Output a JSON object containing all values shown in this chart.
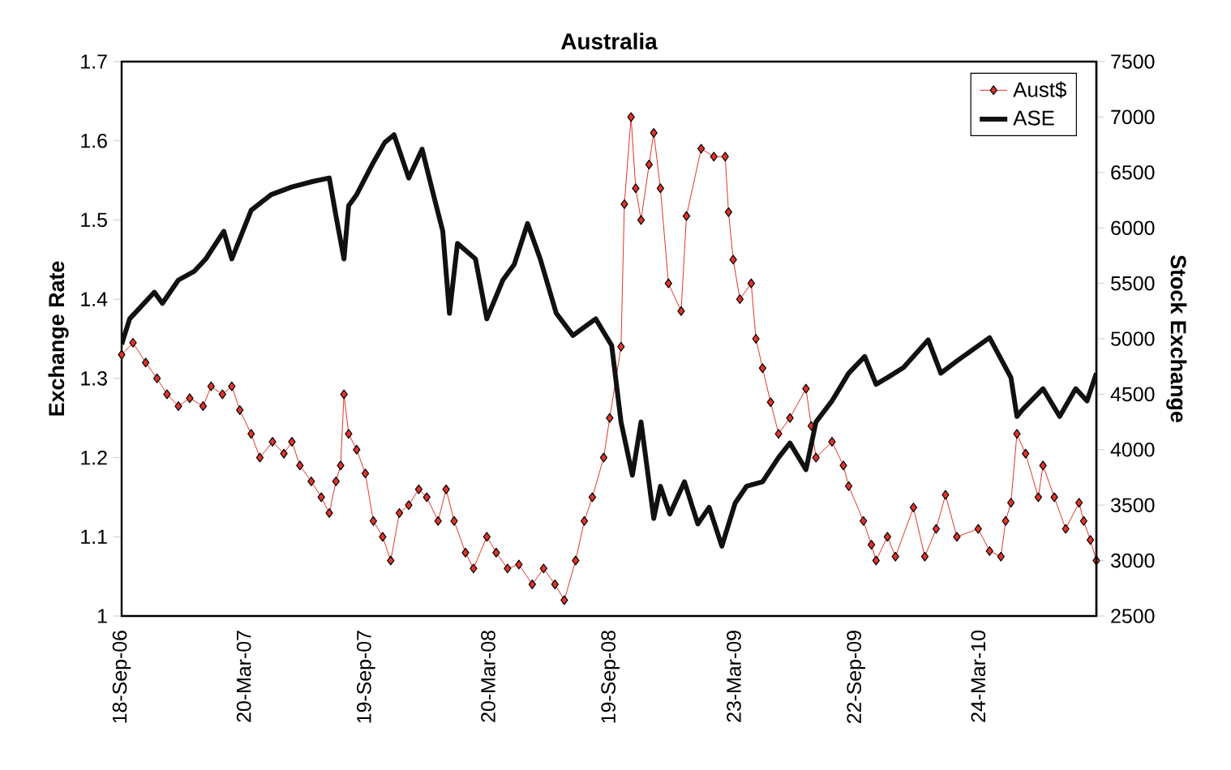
{
  "chart_data": {
    "type": "line",
    "title": "Australia",
    "ylabel": "Exchange Rate",
    "y2label": "Stock Exchange",
    "xlim": [
      "2006-09-18",
      "2010-09-17"
    ],
    "xticks": [
      {
        "value": "2006-09-18",
        "label": "18-Sep-06"
      },
      {
        "value": "2007-03-20",
        "label": "20-Mar-07"
      },
      {
        "value": "2007-09-19",
        "label": "19-Sep-07"
      },
      {
        "value": "2008-03-20",
        "label": "20-Mar-08"
      },
      {
        "value": "2008-09-19",
        "label": "19-Sep-08"
      },
      {
        "value": "2009-03-23",
        "label": "23-Mar-09"
      },
      {
        "value": "2009-09-22",
        "label": "22-Sep-09"
      },
      {
        "value": "2010-03-24",
        "label": "24-Mar-10"
      }
    ],
    "ylim": [
      1,
      1.7
    ],
    "yticks": [
      1,
      1.1,
      1.2,
      1.3,
      1.4,
      1.5,
      1.6,
      1.7
    ],
    "y2lim": [
      2500,
      7500
    ],
    "y2ticks": [
      2500,
      3000,
      3500,
      4000,
      4500,
      5000,
      5500,
      6000,
      6500,
      7000,
      7500
    ],
    "legend": "top right",
    "series": [
      {
        "name": "Aust$",
        "color": "#e2342a",
        "marker": "diamond",
        "line_style": "solid",
        "x": [
          "2006-09-18",
          "2006-10-05",
          "2006-10-24",
          "2006-11-10",
          "2006-11-25",
          "2006-12-12",
          "2006-12-29",
          "2007-01-18",
          "2007-01-30",
          "2007-02-16",
          "2007-03-02",
          "2007-03-14",
          "2007-03-31",
          "2007-04-13",
          "2007-05-02",
          "2007-05-19",
          "2007-05-31",
          "2007-06-12",
          "2007-06-29",
          "2007-07-14",
          "2007-07-26",
          "2007-08-05",
          "2007-08-12",
          "2007-08-17",
          "2007-08-24",
          "2007-09-05",
          "2007-09-18",
          "2007-09-30",
          "2007-10-14",
          "2007-10-26",
          "2007-11-08",
          "2007-11-22",
          "2007-12-07",
          "2007-12-19",
          "2008-01-05",
          "2008-01-17",
          "2008-01-29",
          "2008-02-15",
          "2008-02-27",
          "2008-03-18",
          "2008-04-01",
          "2008-04-18",
          "2008-05-05",
          "2008-05-25",
          "2008-06-11",
          "2008-06-28",
          "2008-07-12",
          "2008-07-29",
          "2008-08-11",
          "2008-08-23",
          "2008-09-09",
          "2008-09-18",
          "2008-10-05",
          "2008-10-10",
          "2008-10-20",
          "2008-10-27",
          "2008-11-04",
          "2008-11-16",
          "2008-11-23",
          "2008-12-03",
          "2008-12-15",
          "2009-01-03",
          "2009-01-11",
          "2009-02-02",
          "2009-02-21",
          "2009-03-10",
          "2009-03-15",
          "2009-03-22",
          "2009-04-01",
          "2009-04-18",
          "2009-04-25",
          "2009-05-05",
          "2009-05-17",
          "2009-05-29",
          "2009-06-15",
          "2009-07-09",
          "2009-07-17",
          "2009-07-24",
          "2009-08-17",
          "2009-09-03",
          "2009-09-11",
          "2009-10-03",
          "2009-10-15",
          "2009-10-22",
          "2009-11-08",
          "2009-11-20",
          "2009-12-17",
          "2010-01-03",
          "2010-01-20",
          "2010-02-03",
          "2010-02-20",
          "2010-03-24",
          "2010-04-10",
          "2010-04-27",
          "2010-05-04",
          "2010-05-12",
          "2010-05-21",
          "2010-06-03",
          "2010-06-22",
          "2010-06-29",
          "2010-07-16",
          "2010-08-02",
          "2010-08-22",
          "2010-08-29",
          "2010-09-08",
          "2010-09-17"
        ],
        "values": [
          1.33,
          1.345,
          1.32,
          1.3,
          1.28,
          1.265,
          1.275,
          1.265,
          1.29,
          1.28,
          1.29,
          1.26,
          1.23,
          1.2,
          1.22,
          1.205,
          1.22,
          1.19,
          1.17,
          1.15,
          1.13,
          1.17,
          1.19,
          1.28,
          1.23,
          1.21,
          1.18,
          1.12,
          1.1,
          1.07,
          1.13,
          1.14,
          1.16,
          1.15,
          1.12,
          1.16,
          1.12,
          1.08,
          1.06,
          1.1,
          1.08,
          1.06,
          1.065,
          1.04,
          1.06,
          1.04,
          1.02,
          1.07,
          1.12,
          1.15,
          1.2,
          1.25,
          1.34,
          1.52,
          1.63,
          1.54,
          1.5,
          1.57,
          1.61,
          1.54,
          1.42,
          1.385,
          1.505,
          1.59,
          1.58,
          1.58,
          1.51,
          1.45,
          1.4,
          1.42,
          1.35,
          1.313,
          1.27,
          1.23,
          1.25,
          1.287,
          1.24,
          1.2,
          1.22,
          1.19,
          1.164,
          1.12,
          1.09,
          1.07,
          1.1,
          1.075,
          1.137,
          1.075,
          1.11,
          1.153,
          1.1,
          1.11,
          1.082,
          1.075,
          1.12,
          1.143,
          1.23,
          1.205,
          1.15,
          1.19,
          1.15,
          1.11,
          1.143,
          1.12,
          1.096,
          1.07
        ]
      },
      {
        "name": "ASE",
        "color": "#111111",
        "marker": "none",
        "line_style": "solid",
        "axis": "y2",
        "x": [
          "2006-09-18",
          "2006-09-30",
          "2006-11-06",
          "2006-11-18",
          "2006-12-12",
          "2007-01-05",
          "2007-01-22",
          "2007-02-18",
          "2007-03-02",
          "2007-03-31",
          "2007-04-30",
          "2007-05-31",
          "2007-07-02",
          "2007-07-26",
          "2007-08-05",
          "2007-08-17",
          "2007-08-24",
          "2007-09-05",
          "2007-09-30",
          "2007-10-17",
          "2007-10-31",
          "2007-11-22",
          "2007-12-12",
          "2007-12-29",
          "2008-01-12",
          "2008-01-22",
          "2008-02-03",
          "2008-03-01",
          "2008-03-18",
          "2008-04-11",
          "2008-04-28",
          "2008-05-18",
          "2008-06-06",
          "2008-06-30",
          "2008-07-25",
          "2008-08-28",
          "2008-09-21",
          "2008-10-05",
          "2008-10-22",
          "2008-11-04",
          "2008-11-23",
          "2008-12-03",
          "2008-12-17",
          "2009-01-08",
          "2009-01-28",
          "2009-02-14",
          "2009-03-05",
          "2009-03-25",
          "2009-04-11",
          "2009-05-05",
          "2009-05-29",
          "2009-06-15",
          "2009-07-09",
          "2009-07-24",
          "2009-08-17",
          "2009-09-11",
          "2009-10-05",
          "2009-10-22",
          "2009-11-08",
          "2009-12-02",
          "2010-01-08",
          "2010-01-27",
          "2010-02-20",
          "2010-04-10",
          "2010-05-12",
          "2010-05-21",
          "2010-05-29",
          "2010-06-29",
          "2010-07-24",
          "2010-08-17",
          "2010-09-03",
          "2010-09-17"
        ],
        "values": [
          4950,
          5180,
          5420,
          5320,
          5530,
          5610,
          5720,
          5970,
          5720,
          6160,
          6300,
          6370,
          6420,
          6450,
          6110,
          5720,
          6200,
          6300,
          6590,
          6770,
          6840,
          6450,
          6710,
          6300,
          5970,
          5230,
          5860,
          5720,
          5180,
          5530,
          5670,
          6040,
          5720,
          5230,
          5030,
          5180,
          4940,
          4250,
          3770,
          4250,
          3380,
          3670,
          3420,
          3710,
          3330,
          3480,
          3130,
          3520,
          3670,
          3710,
          3930,
          4060,
          3820,
          4250,
          4440,
          4690,
          4840,
          4590,
          4650,
          4740,
          4990,
          4690,
          4800,
          5010,
          4650,
          4300,
          4360,
          4550,
          4300,
          4550,
          4440,
          4690
        ]
      }
    ]
  }
}
